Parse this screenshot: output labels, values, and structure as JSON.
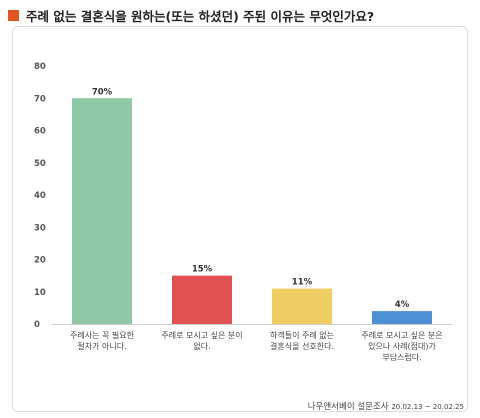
{
  "title": "주례 없는 결혼식을 원하는(또는 하셨던) 주된 이유는 무엇인가요?",
  "accent_color": "#e2551f",
  "chart_data": {
    "type": "bar",
    "categories": [
      [
        "주례사는 꼭 필요한",
        "절차가 아니다."
      ],
      [
        "주례로 모시고 싶은 분이",
        "없다."
      ],
      [
        "하객들이 주례 없는",
        "결혼식을 선호한다."
      ],
      [
        "주례로 모시고 싶은 분은",
        "있으나 사례(접대)가",
        "부담스럽다."
      ]
    ],
    "values": [
      70,
      15,
      11,
      4
    ],
    "value_labels": [
      "70%",
      "15%",
      "11%",
      "4%"
    ],
    "colors": [
      "#8ec8a7",
      "#e05252",
      "#f0cd63",
      "#4d8fd3"
    ],
    "ylim": [
      0,
      80
    ],
    "yticks": [
      0,
      10,
      20,
      30,
      40,
      50,
      60,
      70,
      80
    ],
    "grid": false,
    "legend": "none"
  },
  "footer": {
    "source": "나우앤서베이 설문조사",
    "period": "20.02.13 ~ 20.02.25"
  }
}
